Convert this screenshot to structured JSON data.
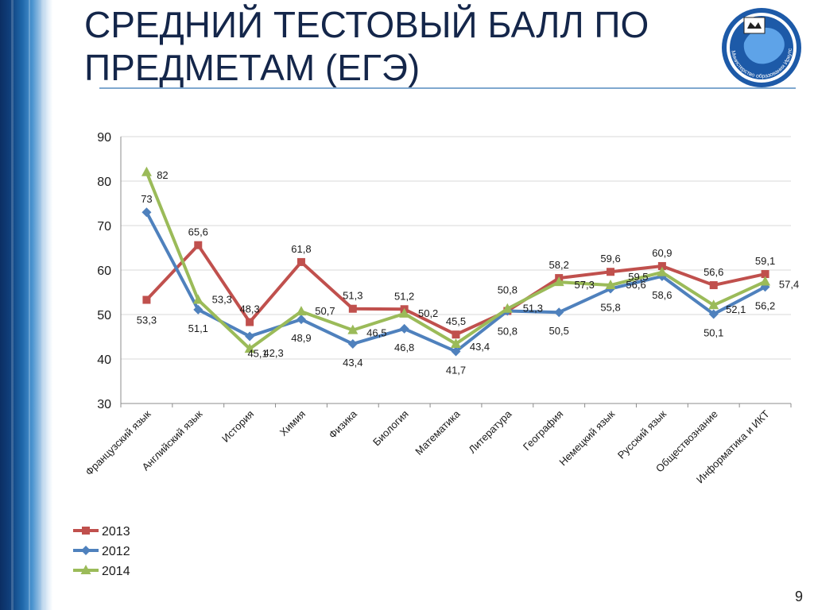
{
  "slide": {
    "title": "СРЕДНИЙ ТЕСТОВЫЙ БАЛЛ ПО ПРЕДМЕТАМ (ЕГЭ)",
    "logo_text": "Министерство образования Иркутской области",
    "page_number": "9"
  },
  "colors": {
    "title": "#14264a",
    "band_dark": "#0b2e63",
    "grid": "#d9d9d9",
    "axis": "#8c8c8c"
  },
  "chart_data": {
    "type": "line",
    "ylim": [
      30,
      90
    ],
    "yticks": [
      "30",
      "40",
      "50",
      "60",
      "70",
      "80",
      "90"
    ],
    "grid": true,
    "legend_position": "bottom-left",
    "categories": [
      "Французский язык",
      "Английский язык",
      "История",
      "Химия",
      "Физика",
      "Биология",
      "Математика",
      "Литература",
      "География",
      "Немецкий язык",
      "Русский язык",
      "Обществознание",
      "Информатика и ИКТ"
    ],
    "series": [
      {
        "name": "2013",
        "color": "#c0504d",
        "marker": "square",
        "values": [
          53.3,
          65.6,
          48.3,
          61.8,
          51.3,
          51.2,
          45.5,
          50.8,
          58.2,
          59.6,
          60.9,
          56.6,
          59.1
        ],
        "labels": [
          "53,3",
          "65,6",
          "48,3",
          "61,8",
          "51,3",
          "51,2",
          "45,5",
          "50,8",
          "58,2",
          "59,6",
          "60,9",
          "56,6",
          "59,1"
        ]
      },
      {
        "name": "2012",
        "color": "#4f81bd",
        "marker": "diamond",
        "values": [
          73,
          51.1,
          45.1,
          48.9,
          43.4,
          46.8,
          41.7,
          50.8,
          50.5,
          55.8,
          58.6,
          50.1,
          56.2
        ],
        "labels": [
          "73",
          "51,1",
          "45,1",
          "48,9",
          "43,4",
          "46,8",
          "41,7",
          "50,8",
          "50,5",
          "55,8",
          "58,6",
          "50,1",
          "56,2"
        ]
      },
      {
        "name": "2014",
        "color": "#9bbb59",
        "marker": "triangle",
        "values": [
          82,
          53.3,
          42.3,
          50.7,
          46.5,
          50.2,
          43.4,
          51.3,
          57.3,
          56.6,
          59.5,
          52.1,
          57.4
        ],
        "labels": [
          "82",
          "53,3",
          "42,3",
          "50,7",
          "46,5",
          "50,2",
          "43,4",
          "51,3",
          "57,3",
          "56,6",
          "59,5",
          "52,1",
          "57,4"
        ]
      }
    ]
  }
}
